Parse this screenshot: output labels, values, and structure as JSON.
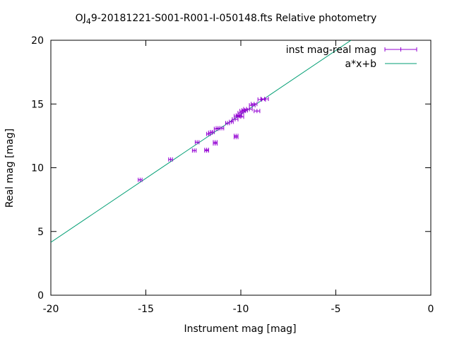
{
  "chart_data": {
    "type": "scatter",
    "title_main": "OJ",
    "title_sub": "4",
    "title_rest": "9-20181221-S001-R001-I-050148.fts Relative photometry",
    "xlabel": "Instrument mag [mag]",
    "ylabel": "Real mag [mag]",
    "xlim": [
      -20,
      0
    ],
    "ylim": [
      0,
      20
    ],
    "x_ticks": [
      -20,
      -15,
      -10,
      -5,
      0
    ],
    "y_ticks": [
      0,
      5,
      10,
      15,
      20
    ],
    "grid": false,
    "legend_position": "top-right",
    "series": [
      {
        "name": "inst mag-real mag",
        "color": "#9400d3",
        "marker": "plus-with-xerrorbars",
        "points": [
          {
            "x": -15.3,
            "y": 9.05,
            "xerr": 0.1
          },
          {
            "x": -13.7,
            "y": 10.65,
            "xerr": 0.1
          },
          {
            "x": -12.3,
            "y": 12.0,
            "xerr": 0.1
          },
          {
            "x": -12.45,
            "y": 11.35,
            "xerr": 0.1
          },
          {
            "x": -11.8,
            "y": 11.4,
            "xerr": 0.1
          },
          {
            "x": -11.8,
            "y": 11.35,
            "xerr": 0.1
          },
          {
            "x": -11.35,
            "y": 12.0,
            "xerr": 0.1
          },
          {
            "x": -11.35,
            "y": 11.9,
            "xerr": 0.1
          },
          {
            "x": -11.7,
            "y": 12.65,
            "xerr": 0.1
          },
          {
            "x": -11.6,
            "y": 12.75,
            "xerr": 0.1
          },
          {
            "x": -11.5,
            "y": 12.8,
            "xerr": 0.1
          },
          {
            "x": -11.3,
            "y": 13.05,
            "xerr": 0.1
          },
          {
            "x": -11.2,
            "y": 13.1,
            "xerr": 0.1
          },
          {
            "x": -11.0,
            "y": 13.1,
            "xerr": 0.1
          },
          {
            "x": -10.7,
            "y": 13.5,
            "xerr": 0.1
          },
          {
            "x": -10.5,
            "y": 13.6,
            "xerr": 0.1
          },
          {
            "x": -10.3,
            "y": 13.8,
            "xerr": 0.15
          },
          {
            "x": -10.2,
            "y": 14.05,
            "xerr": 0.15
          },
          {
            "x": -10.1,
            "y": 14.1,
            "xerr": 0.15
          },
          {
            "x": -10.0,
            "y": 14.3,
            "xerr": 0.15
          },
          {
            "x": -9.9,
            "y": 14.45,
            "xerr": 0.15
          },
          {
            "x": -9.8,
            "y": 14.5,
            "xerr": 0.15
          },
          {
            "x": -9.7,
            "y": 14.6,
            "xerr": 0.15
          },
          {
            "x": -9.55,
            "y": 14.6,
            "xerr": 0.15
          },
          {
            "x": -9.4,
            "y": 14.9,
            "xerr": 0.15
          },
          {
            "x": -9.3,
            "y": 15.0,
            "xerr": 0.15
          },
          {
            "x": -9.15,
            "y": 14.45,
            "xerr": 0.15
          },
          {
            "x": -8.9,
            "y": 15.35,
            "xerr": 0.2
          },
          {
            "x": -8.75,
            "y": 15.4,
            "xerr": 0.2
          },
          {
            "x": -10.25,
            "y": 12.4,
            "xerr": 0.1
          },
          {
            "x": -10.25,
            "y": 12.5,
            "xerr": 0.1
          },
          {
            "x": -10.0,
            "y": 14.0,
            "xerr": 0.15
          }
        ]
      },
      {
        "name": "a*x+b",
        "color": "#009e73",
        "type": "line",
        "x": [
          -20,
          -4.2
        ],
        "y": [
          4.15,
          20
        ]
      }
    ]
  }
}
